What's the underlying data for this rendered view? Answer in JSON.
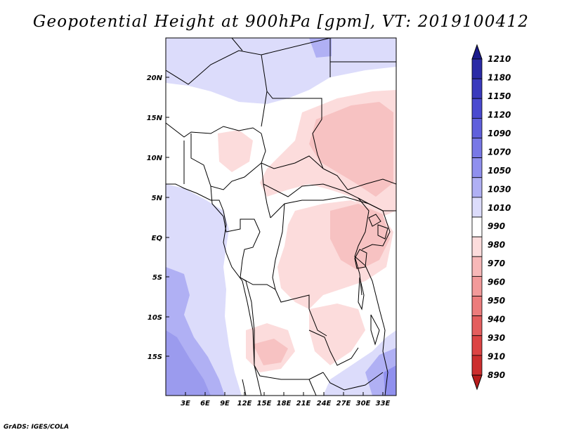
{
  "title": "Geopotential Height at 900hPa [gpm], VT: 2019100412",
  "credit": "GrADS: IGES/COLA",
  "map": {
    "lat_labels": [
      "20N",
      "15N",
      "10N",
      "5N",
      "EQ",
      "5S",
      "10S",
      "15S"
    ],
    "lon_labels": [
      "3E",
      "6E",
      "9E",
      "12E",
      "15E",
      "18E",
      "21E",
      "24E",
      "27E",
      "30E",
      "33E"
    ]
  },
  "legend": {
    "levels": [
      "1210",
      "1180",
      "1150",
      "1120",
      "1090",
      "1070",
      "1050",
      "1030",
      "1010",
      "990",
      "980",
      "970",
      "960",
      "950",
      "940",
      "930",
      "910",
      "890"
    ],
    "colors": [
      "#1a1a8c",
      "#2a2aa6",
      "#3a3abd",
      "#4a4ad0",
      "#6060dc",
      "#7878e6",
      "#9090ee",
      "#b0b0f4",
      "#dcdcfb",
      "#ffffff",
      "#fcdcdc",
      "#f7b8b8",
      "#f29a9a",
      "#ec7c7c",
      "#e45e5e",
      "#dc4444",
      "#cc2e2e",
      "#b71c1c"
    ]
  }
}
